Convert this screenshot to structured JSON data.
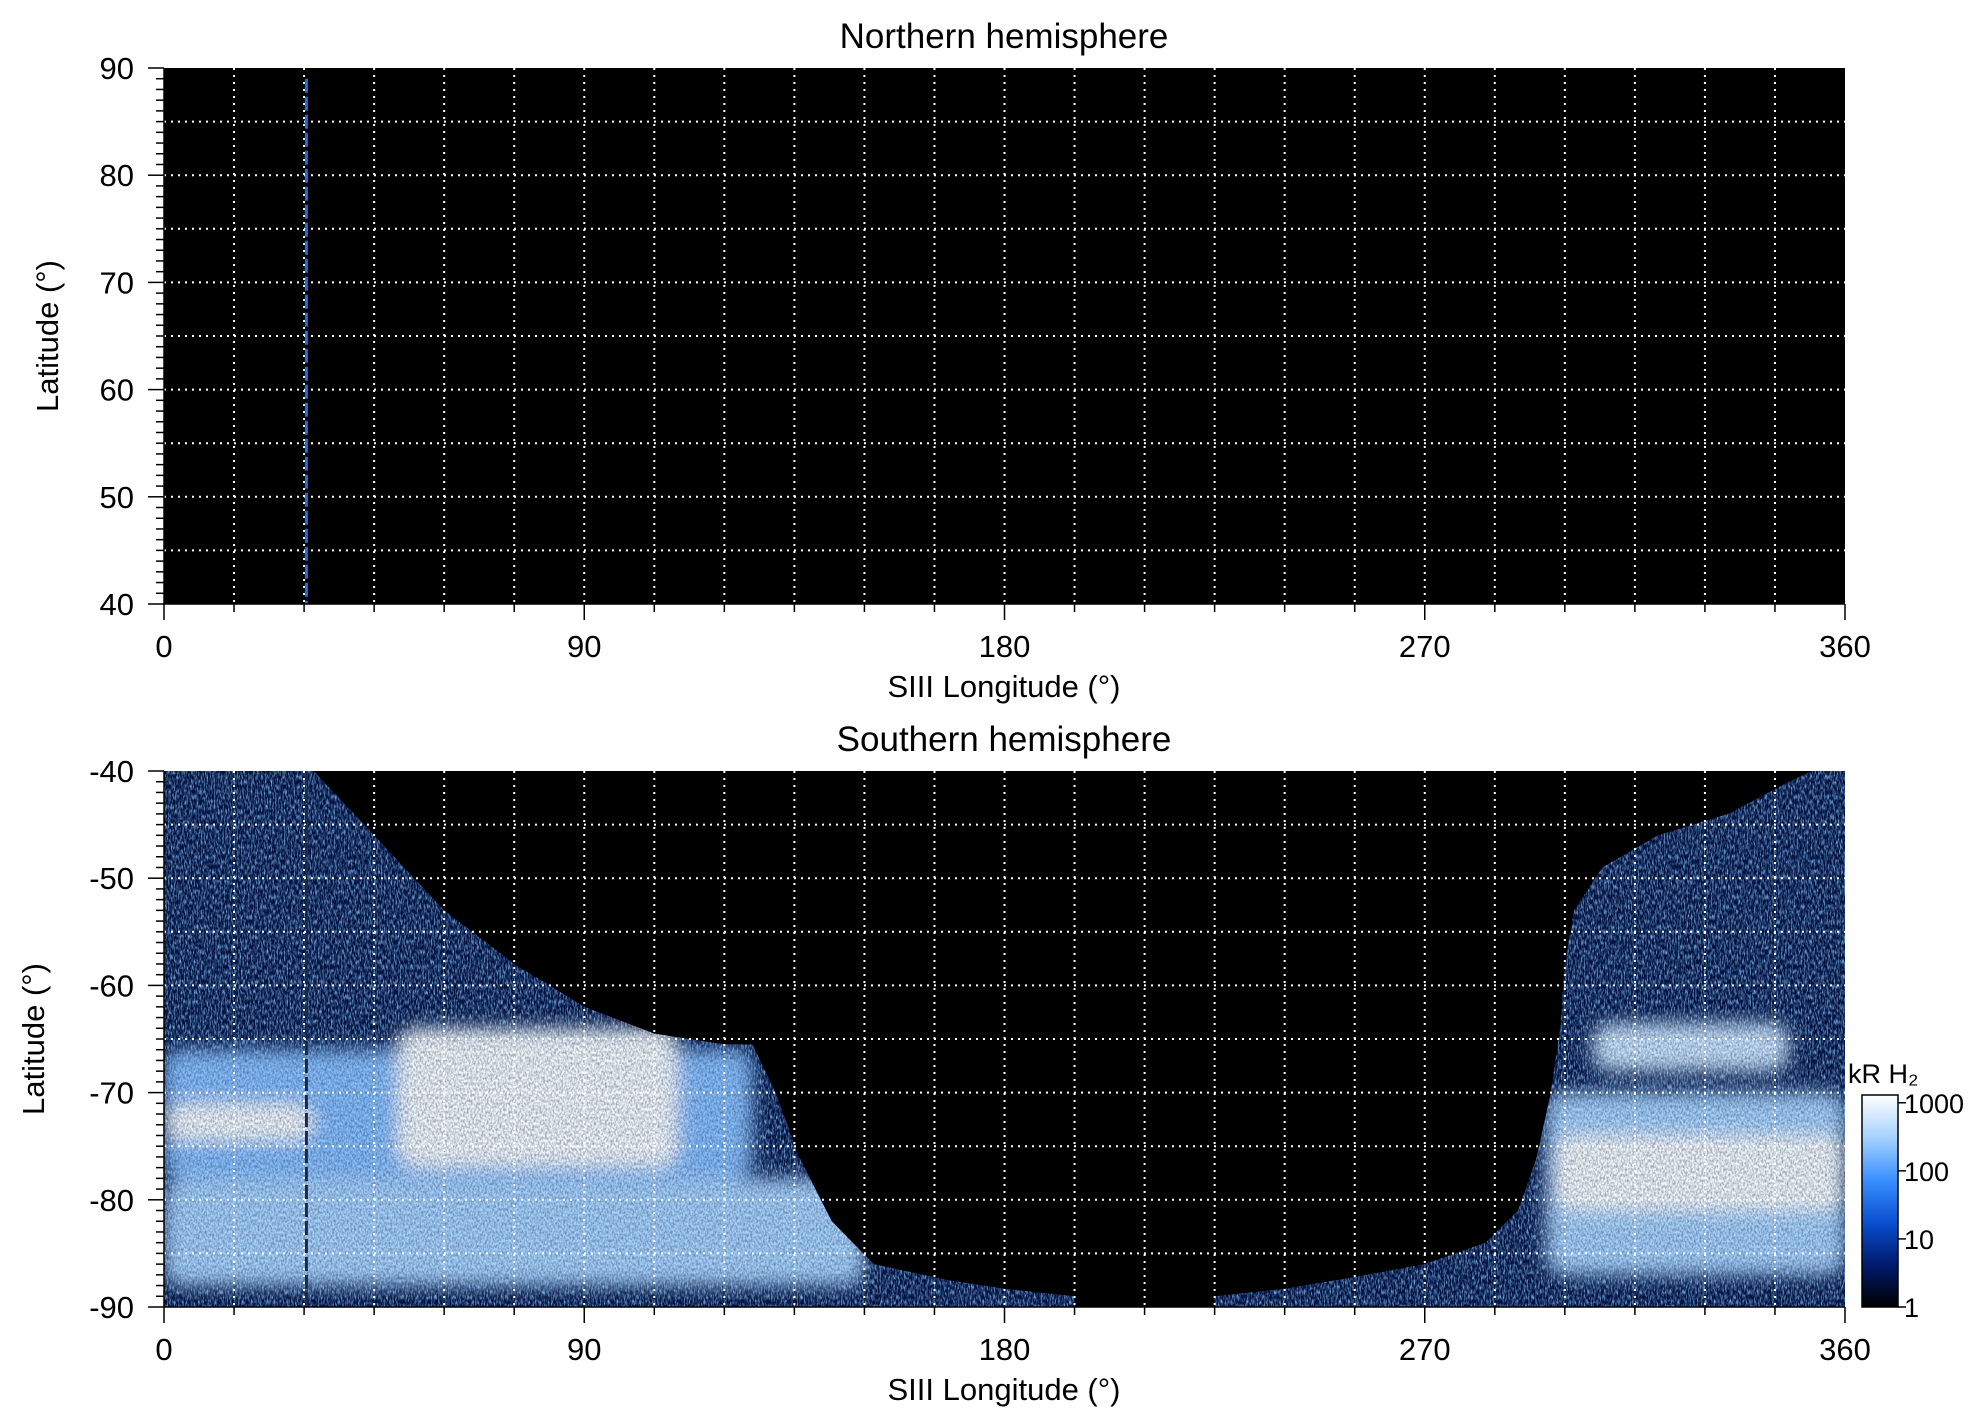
{
  "chart_data": [
    {
      "type": "heatmap",
      "title": "Northern hemisphere",
      "xlabel": "SIII Longitude (°)",
      "ylabel": "Latitude (°)",
      "xlim": [
        0,
        360
      ],
      "ylim": [
        40,
        90
      ],
      "xticks": [
        0,
        90,
        180,
        270,
        360
      ],
      "xtick_labels": [
        "0",
        "90",
        "180",
        "270",
        "360"
      ],
      "yticks": [
        40,
        50,
        60,
        70,
        80,
        90
      ],
      "ytick_labels": [
        "40",
        "50",
        "60",
        "70",
        "80",
        "90"
      ],
      "grid": true,
      "grid_x_step": 15,
      "grid_y_step": 5,
      "background_color": "#000000",
      "markers": [
        {
          "type": "dashed-vline",
          "x": 30.5,
          "from_lat": 40,
          "to_lat": 89,
          "color": "#1e6fd9"
        }
      ],
      "emission_regions": []
    },
    {
      "type": "heatmap",
      "title": "Southern hemisphere",
      "xlabel": "SIII Longitude (°)",
      "ylabel": "Latitude (°)",
      "xlim": [
        0,
        360
      ],
      "ylim": [
        -90,
        -40
      ],
      "xticks": [
        0,
        90,
        180,
        270,
        360
      ],
      "xtick_labels": [
        "0",
        "90",
        "180",
        "270",
        "360"
      ],
      "yticks": [
        -90,
        -80,
        -70,
        -60,
        -50,
        -40
      ],
      "ytick_labels": [
        "-90",
        "-80",
        "-70",
        "-60",
        "-50",
        "-40"
      ],
      "grid": true,
      "grid_x_step": 15,
      "grid_y_step": 5,
      "background_color": "#000000",
      "coverage_boundary": {
        "left": [
          [
            0,
            -40
          ],
          [
            32,
            -40
          ],
          [
            45,
            -46
          ],
          [
            60,
            -53
          ],
          [
            75,
            -58
          ],
          [
            90,
            -62
          ],
          [
            105,
            -64.5
          ],
          [
            120,
            -65.5
          ],
          [
            126,
            -65.5
          ],
          [
            131,
            -70
          ],
          [
            136,
            -76
          ],
          [
            143,
            -82
          ],
          [
            152,
            -86
          ],
          [
            168,
            -87.5
          ],
          [
            180,
            -88.3
          ],
          [
            195,
            -89
          ]
        ],
        "right": [
          [
            225,
            -89
          ],
          [
            240,
            -88.3
          ],
          [
            255,
            -87.2
          ],
          [
            270,
            -86
          ],
          [
            283,
            -84
          ],
          [
            290,
            -81
          ],
          [
            294,
            -76
          ],
          [
            297,
            -70
          ],
          [
            299,
            -64
          ],
          [
            300,
            -58
          ],
          [
            302,
            -53
          ],
          [
            308,
            -49
          ],
          [
            320,
            -46
          ],
          [
            335,
            -44
          ],
          [
            348,
            -41
          ],
          [
            353,
            -40
          ],
          [
            360,
            -40
          ]
        ]
      },
      "emission_bands": [
        {
          "lon_from": 0,
          "lon_to": 126,
          "lat_from": -66,
          "lat_to": -78,
          "intensity_kR": 200
        },
        {
          "lon_from": 0,
          "lon_to": 150,
          "lat_from": -78,
          "lat_to": -88,
          "intensity_kR": 300
        },
        {
          "lon_from": 50,
          "lon_to": 110,
          "lat_from": -64,
          "lat_to": -77,
          "intensity_kR": 1000
        },
        {
          "lon_from": 0,
          "lon_to": 32,
          "lat_from": -71,
          "lat_to": -74.5,
          "intensity_kR": 1000
        },
        {
          "lon_from": 296,
          "lon_to": 360,
          "lat_from": -70,
          "lat_to": -87,
          "intensity_kR": 300
        },
        {
          "lon_from": 298,
          "lon_to": 360,
          "lat_from": -74,
          "lat_to": -81,
          "intensity_kR": 1000
        },
        {
          "lon_from": 306,
          "lon_to": 348,
          "lat_from": -63.5,
          "lat_to": -68,
          "intensity_kR": 500
        }
      ],
      "markers": [
        {
          "type": "dashed-vline",
          "x": 30.5,
          "from_lat": -40,
          "to_lat": -90,
          "color": "#1a2a4a"
        }
      ]
    }
  ],
  "colorbar": {
    "label": "kR H₂",
    "ticks": [
      "1000",
      "100",
      "10",
      "1"
    ],
    "tick_values": [
      1000,
      100,
      10,
      1
    ],
    "scale": "log",
    "range": [
      1,
      1300
    ],
    "colors": [
      "#000000",
      "#001a6e",
      "#0a4fd0",
      "#3a90ff",
      "#a6d2ff",
      "#ffffff"
    ]
  }
}
